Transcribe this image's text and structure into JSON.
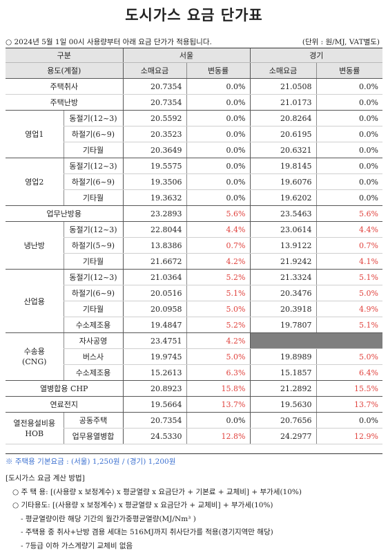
{
  "title": "도시가스 요금 단가표",
  "notice": "○ 2024년 5월 1일 00시 사용량부터 아래 요금 단가가 적용됩니다.",
  "unit": "(단위 : 원/MJ, VAT별도)",
  "header": {
    "gubun": "구분",
    "usage": "용도(계절)",
    "seoul": "서울",
    "gyeonggi": "경기",
    "retail": "소매요금",
    "change": "변동률"
  },
  "rows": [
    {
      "group": "",
      "label": "주택취사",
      "s": "20.7354",
      "sc": "0.0%",
      "g": "21.0508",
      "gc": "0.0%"
    },
    {
      "group": "",
      "label": "주택난방",
      "s": "20.7354",
      "sc": "0.0%",
      "g": "21.0173",
      "gc": "0.0%"
    },
    {
      "group": "영업1",
      "label": "동절기(12~3)",
      "s": "20.5592",
      "sc": "0.0%",
      "g": "20.8264",
      "gc": "0.0%"
    },
    {
      "group": "",
      "label": "하절기(6~9)",
      "s": "20.3523",
      "sc": "0.0%",
      "g": "20.6195",
      "gc": "0.0%"
    },
    {
      "group": "",
      "label": "기타월",
      "s": "20.3649",
      "sc": "0.0%",
      "g": "20.6321",
      "gc": "0.0%"
    },
    {
      "group": "영업2",
      "label": "동절기(12~3)",
      "s": "19.5575",
      "sc": "0.0%",
      "g": "19.8145",
      "gc": "0.0%"
    },
    {
      "group": "",
      "label": "하절기(6~9)",
      "s": "19.3506",
      "sc": "0.0%",
      "g": "19.6076",
      "gc": "0.0%"
    },
    {
      "group": "",
      "label": "기타월",
      "s": "19.3632",
      "sc": "0.0%",
      "g": "19.6202",
      "gc": "0.0%"
    },
    {
      "group": "",
      "label": "업무난방용",
      "s": "23.2893",
      "sc": "5.6%",
      "g": "23.5463",
      "gc": "5.6%"
    },
    {
      "group": "냉난방",
      "label": "동절기(12~3)",
      "s": "22.8044",
      "sc": "4.4%",
      "g": "23.0614",
      "gc": "4.4%"
    },
    {
      "group": "",
      "label": "하절기(5~9)",
      "s": "13.8386",
      "sc": "0.7%",
      "g": "13.9122",
      "gc": "0.7%"
    },
    {
      "group": "",
      "label": "기타월",
      "s": "21.6672",
      "sc": "4.2%",
      "g": "21.9242",
      "gc": "4.1%"
    },
    {
      "group": "산업용",
      "label": "동절기(12~3)",
      "s": "21.0364",
      "sc": "5.2%",
      "g": "21.3324",
      "gc": "5.1%"
    },
    {
      "group": "",
      "label": "하절기(6~9)",
      "s": "20.0516",
      "sc": "5.1%",
      "g": "20.3476",
      "gc": "5.0%"
    },
    {
      "group": "",
      "label": "기타월",
      "s": "20.0958",
      "sc": "5.0%",
      "g": "20.3918",
      "gc": "4.9%"
    },
    {
      "group": "",
      "label": "수소제조용",
      "s": "19.4847",
      "sc": "5.2%",
      "g": "19.7807",
      "gc": "5.1%"
    },
    {
      "group": "수송용 (CNG)",
      "label": "자사공영",
      "s": "23.4751",
      "sc": "4.2%",
      "g": "",
      "gc": ""
    },
    {
      "group": "",
      "label": "버스사",
      "s": "19.9745",
      "sc": "5.0%",
      "g": "19.8989",
      "gc": "5.0%"
    },
    {
      "group": "",
      "label": "수소제조용",
      "s": "15.2613",
      "sc": "6.3%",
      "g": "15.1857",
      "gc": "6.4%"
    },
    {
      "group": "",
      "label": "열병합용 CHP",
      "s": "20.8923",
      "sc": "15.8%",
      "g": "21.2892",
      "gc": "15.5%"
    },
    {
      "group": "",
      "label": "연료전지",
      "s": "19.5664",
      "sc": "13.7%",
      "g": "19.5630",
      "gc": "13.7%"
    },
    {
      "group": "열전용설비용 HOB",
      "label": "공동주택",
      "s": "20.7354",
      "sc": "0.0%",
      "g": "20.7656",
      "gc": "0.0%"
    },
    {
      "group": "",
      "label": "업무용열병합",
      "s": "24.5330",
      "sc": "12.8%",
      "g": "24.2977",
      "gc": "12.9%"
    }
  ],
  "base_fee_note": "※ 주택용 기본요금 : (서울) 1,250원 / (경기) 1,200원",
  "method": {
    "title": "[도시가스 요금 계산 방법]",
    "line1": "○ 주 택 용: [(사용량 x 보정계수) x 평균열량 x 요금단가 + 기본료 + 교체비] + 부가세(10%)",
    "line2": "○ 기타용도: [(사용량 x 보정계수) x 평균열량 x 요금단가 + 교체비] + 부가세(10%)",
    "line3": "- 평균열량이란 해당 기간의 월간가중평균열량(MJ/Nm³ )",
    "line4": "- 주택용 중 취사+난방 겸용 세대는 516MJ까지 취사단가를 적용(경기지역만 해당)",
    "line5": "- 7등급 이하 가스계량기 교체비 없음"
  },
  "colors": {
    "increase": "#e0413c",
    "header_bg": "#e4e4e4",
    "blank_cell": "#7f7f7f",
    "note": "#3a6fd0"
  }
}
